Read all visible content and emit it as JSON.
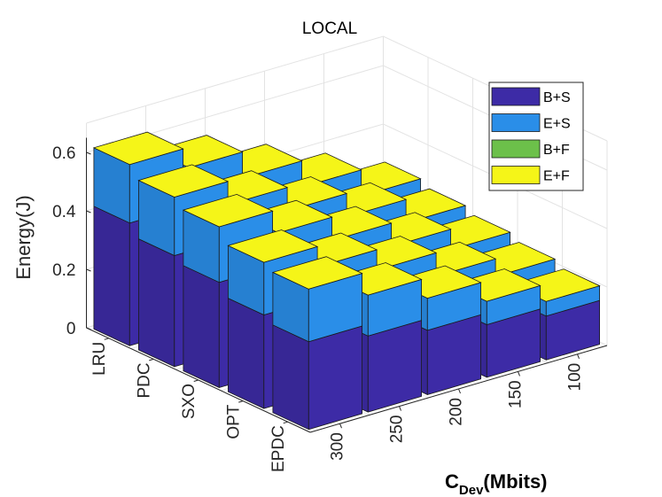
{
  "chart_data": {
    "type": "bar",
    "title": "LOCAL",
    "ylabel": "Energy(J)",
    "xlabel": "C",
    "xlabel_subscript": "Dev",
    "xlabel_suffix": "(Mbits)",
    "ylim": [
      0,
      0.65
    ],
    "yticks": [
      "0",
      "0.2",
      "0.4",
      "0.6"
    ],
    "ytick_values": [
      0,
      0.2,
      0.4,
      0.6
    ],
    "policies": [
      "LRU",
      "PDC",
      "SXO",
      "OPT",
      "EPDC"
    ],
    "capacities": [
      "300",
      "250",
      "200",
      "150",
      "100"
    ],
    "grid": true,
    "legend_position": "top-right",
    "series": [
      {
        "name": "B+S",
        "color": "#3d2ba6",
        "values": [
          [
            0.42,
            0.37,
            0.31,
            0.25,
            0.19
          ],
          [
            0.38,
            0.33,
            0.28,
            0.23,
            0.18
          ],
          [
            0.36,
            0.31,
            0.26,
            0.21,
            0.17
          ],
          [
            0.32,
            0.28,
            0.24,
            0.19,
            0.16
          ],
          [
            0.3,
            0.26,
            0.22,
            0.18,
            0.15
          ]
        ]
      },
      {
        "name": "E+S",
        "color": "#2a8ee8",
        "values": [
          [
            0.2,
            0.18,
            0.15,
            0.12,
            0.09
          ],
          [
            0.2,
            0.17,
            0.14,
            0.11,
            0.08
          ],
          [
            0.19,
            0.16,
            0.13,
            0.1,
            0.07
          ],
          [
            0.18,
            0.15,
            0.12,
            0.09,
            0.06
          ],
          [
            0.18,
            0.14,
            0.11,
            0.08,
            0.05
          ]
        ]
      },
      {
        "name": "B+F",
        "color": "#6cc04a",
        "values": [
          [
            0,
            0,
            0,
            0,
            0
          ],
          [
            0,
            0,
            0,
            0,
            0
          ],
          [
            0,
            0,
            0,
            0,
            0
          ],
          [
            0,
            0,
            0,
            0,
            0
          ],
          [
            0,
            0,
            0,
            0,
            0
          ]
        ]
      },
      {
        "name": "E+F",
        "color": "#f5f518",
        "values": [
          [
            0,
            0,
            0,
            0,
            0
          ],
          [
            0,
            0,
            0,
            0,
            0
          ],
          [
            0,
            0,
            0,
            0,
            0
          ],
          [
            0,
            0,
            0,
            0,
            0
          ],
          [
            0,
            0,
            0,
            0,
            0
          ]
        ]
      }
    ]
  }
}
